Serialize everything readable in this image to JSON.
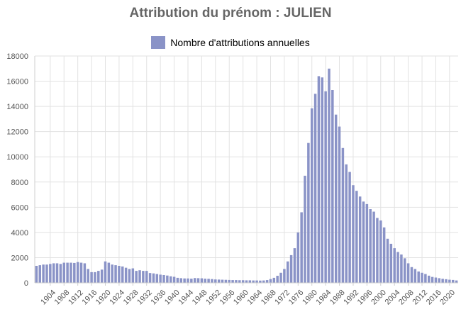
{
  "colors": {
    "bar": "#8a93c7",
    "grid": "#e2e2e2",
    "axis": "#cfcfcf",
    "title": "#666666"
  },
  "chart_data": {
    "type": "bar",
    "title": "Attribution du prénom : JULIEN",
    "legend": {
      "label": "Nombre d'attributions annuelles",
      "placement": "top-center"
    },
    "xlabel": "",
    "ylabel": "",
    "ylim": [
      0,
      18000
    ],
    "y_ticks": [
      0,
      2000,
      4000,
      6000,
      8000,
      10000,
      12000,
      14000,
      16000,
      18000
    ],
    "x_tick_labels": [
      "1904",
      "1908",
      "1912",
      "1916",
      "1920",
      "1924",
      "1928",
      "1932",
      "1936",
      "1940",
      "1944",
      "1948",
      "1952",
      "1956",
      "1960",
      "1964",
      "1968",
      "1972",
      "1976",
      "1980",
      "1984",
      "1988",
      "1992",
      "1996",
      "2000",
      "2004",
      "2008",
      "2012",
      "2016",
      "2020"
    ],
    "grid": true,
    "series": [
      {
        "name": "Nombre d'attributions annuelles",
        "x": [
          1900,
          1901,
          1902,
          1903,
          1904,
          1905,
          1906,
          1907,
          1908,
          1909,
          1910,
          1911,
          1912,
          1913,
          1914,
          1915,
          1916,
          1917,
          1918,
          1919,
          1920,
          1921,
          1922,
          1923,
          1924,
          1925,
          1926,
          1927,
          1928,
          1929,
          1930,
          1931,
          1932,
          1933,
          1934,
          1935,
          1936,
          1937,
          1938,
          1939,
          1940,
          1941,
          1942,
          1943,
          1944,
          1945,
          1946,
          1947,
          1948,
          1949,
          1950,
          1951,
          1952,
          1953,
          1954,
          1955,
          1956,
          1957,
          1958,
          1959,
          1960,
          1961,
          1962,
          1963,
          1964,
          1965,
          1966,
          1967,
          1968,
          1969,
          1970,
          1971,
          1972,
          1973,
          1974,
          1975,
          1976,
          1977,
          1978,
          1979,
          1980,
          1981,
          1982,
          1983,
          1984,
          1985,
          1986,
          1987,
          1988,
          1989,
          1990,
          1991,
          1992,
          1993,
          1994,
          1995,
          1996,
          1997,
          1998,
          1999,
          2000,
          2001,
          2002,
          2003,
          2004,
          2005,
          2006,
          2007,
          2008,
          2009,
          2010,
          2011,
          2012,
          2013,
          2014,
          2015,
          2016,
          2017,
          2018,
          2019,
          2020,
          2021,
          2022
        ],
        "values": [
          1350,
          1400,
          1450,
          1450,
          1500,
          1550,
          1550,
          1500,
          1600,
          1600,
          1600,
          1580,
          1650,
          1600,
          1550,
          1100,
          850,
          850,
          950,
          1050,
          1700,
          1600,
          1450,
          1400,
          1350,
          1300,
          1200,
          1100,
          1150,
          950,
          1000,
          950,
          950,
          780,
          750,
          700,
          650,
          620,
          580,
          520,
          480,
          400,
          370,
          350,
          350,
          330,
          380,
          370,
          360,
          330,
          320,
          300,
          270,
          260,
          250,
          240,
          230,
          220,
          220,
          210,
          210,
          200,
          200,
          190,
          190,
          180,
          190,
          220,
          300,
          400,
          560,
          800,
          1100,
          1700,
          2200,
          2750,
          4000,
          5600,
          8500,
          11100,
          13850,
          15000,
          16400,
          16300,
          15200,
          17000,
          15300,
          13350,
          12400,
          10700,
          9400,
          8800,
          7750,
          7300,
          6850,
          6450,
          6250,
          5850,
          5650,
          5150,
          4950,
          4400,
          3500,
          3100,
          2750,
          2450,
          2250,
          1950,
          1550,
          1250,
          1100,
          900,
          800,
          700,
          570,
          470,
          420,
          370,
          320,
          290,
          250,
          230,
          190
        ]
      }
    ]
  }
}
